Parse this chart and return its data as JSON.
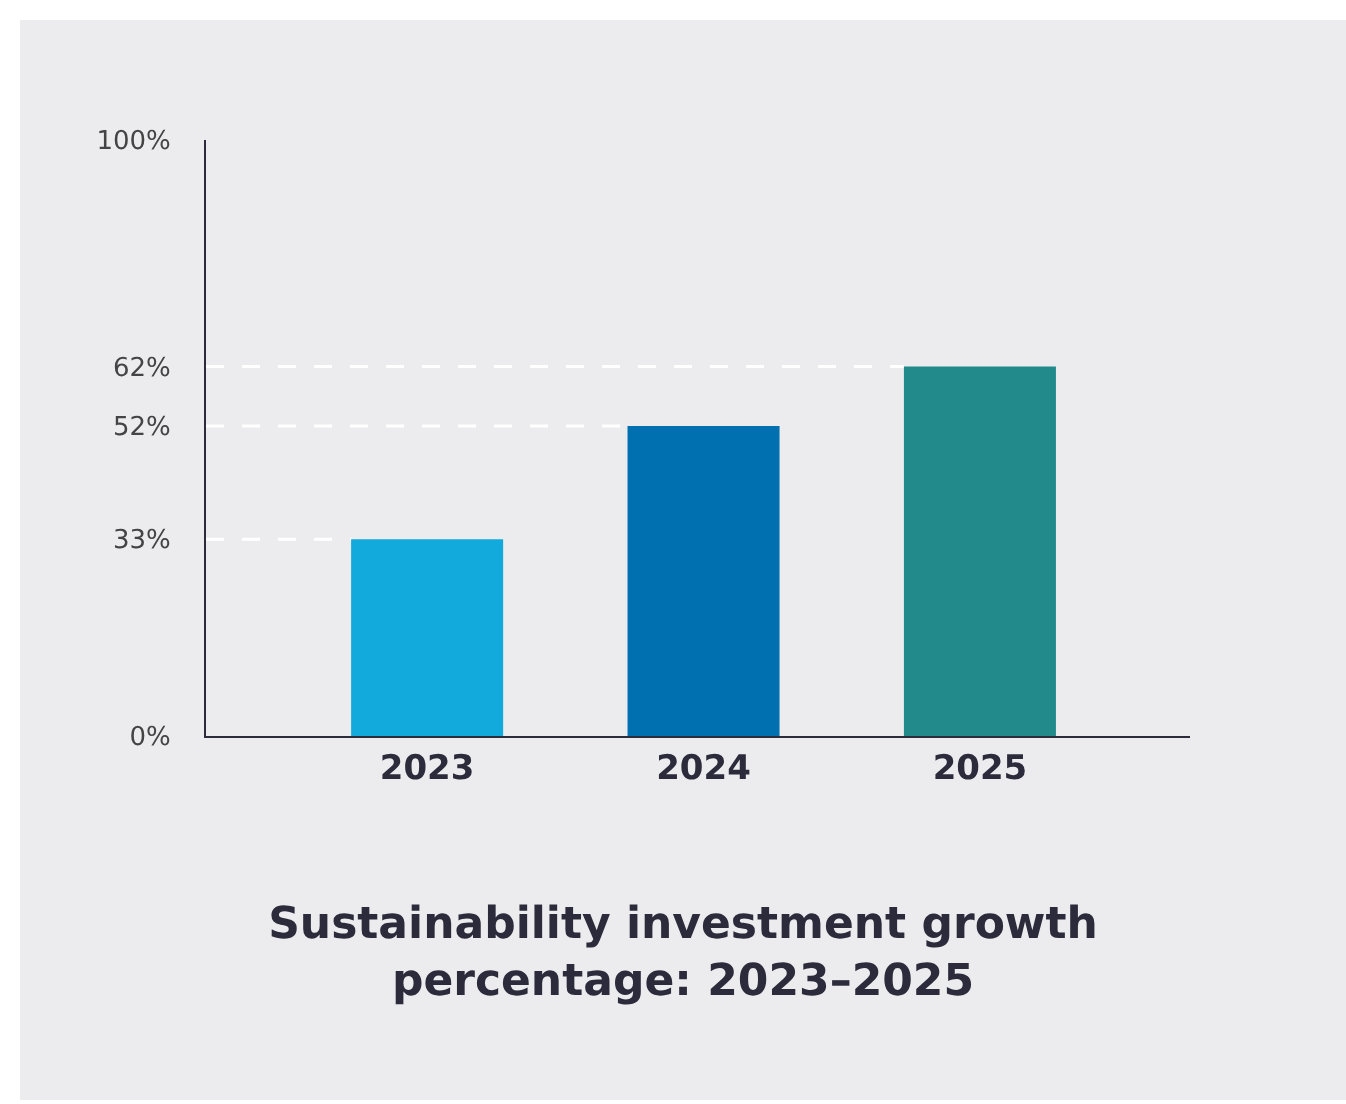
{
  "chart_data": {
    "type": "bar",
    "title": "Sustainability investment growth percentage: 2023–2025",
    "categories": [
      "2023",
      "2024",
      "2025"
    ],
    "values": [
      33,
      52,
      62
    ],
    "colors": [
      "#12a9dc",
      "#0070b0",
      "#228a8a"
    ],
    "ylim": [
      0,
      100
    ],
    "yticks": [
      {
        "value": 0,
        "label": "0%"
      },
      {
        "value": 33,
        "label": "33%"
      },
      {
        "value": 52,
        "label": "52%"
      },
      {
        "value": 62,
        "label": "62%"
      },
      {
        "value": 100,
        "label": "100%"
      }
    ],
    "ref_lines": [
      {
        "axis": "y",
        "value": 33,
        "color": "#ffffff",
        "line_style": "dashed"
      },
      {
        "axis": "y",
        "value": 52,
        "color": "#ffffff",
        "line_style": "dashed"
      },
      {
        "axis": "y",
        "value": 62,
        "color": "#ffffff",
        "line_style": "dashed"
      }
    ],
    "grid": false
  }
}
